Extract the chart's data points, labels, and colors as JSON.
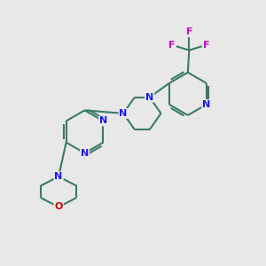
{
  "bg_color": "#e8e8e8",
  "bond_color": "#3a7a6a",
  "bond_lw": 1.5,
  "atom_colors": {
    "N": "#1a1aee",
    "O": "#cc0000",
    "F": "#cc00cc"
  },
  "figsize": [
    3.0,
    3.0
  ],
  "dpi": 100,
  "xlim": [
    0,
    10
  ],
  "ylim": [
    0,
    10
  ]
}
